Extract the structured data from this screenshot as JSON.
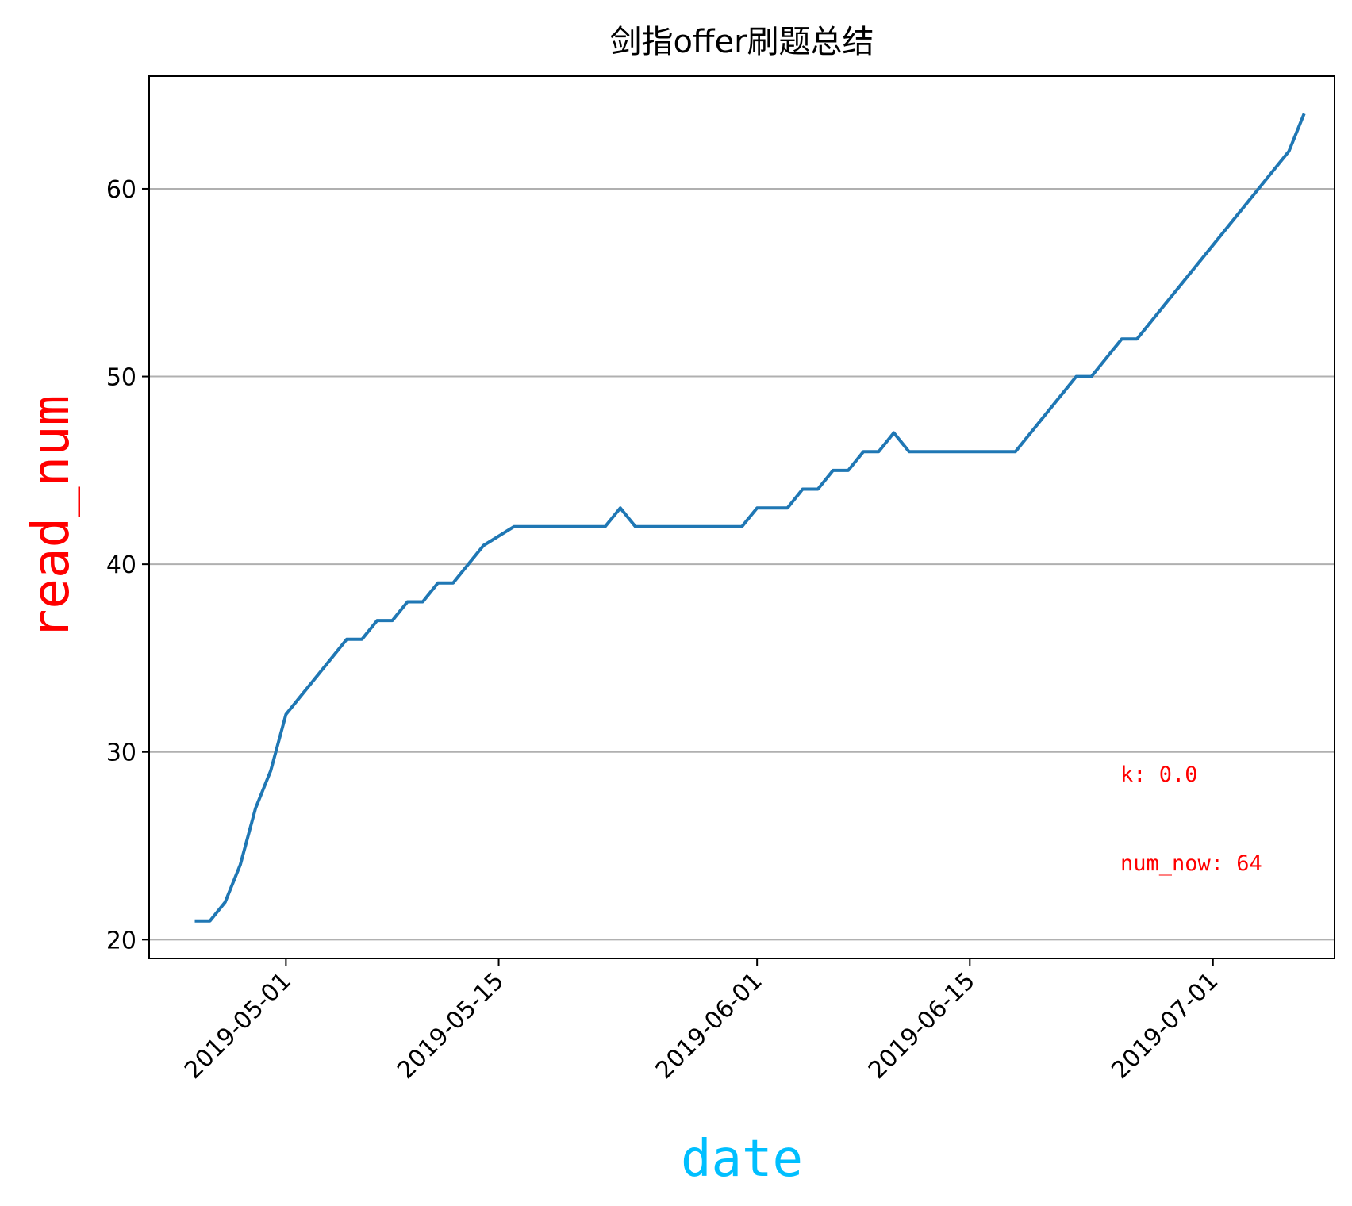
{
  "chart_data": {
    "type": "line",
    "title": "剑指offer刷题总结",
    "xlabel": "date",
    "ylabel": "read_num",
    "xlabel_color": "#00bfff",
    "ylabel_color": "#ff0000",
    "line_color": "#1f77b4",
    "grid": "y",
    "ylim": [
      19,
      66
    ],
    "xlim": [
      "2019-04-22",
      "2019-07-09"
    ],
    "yticks": [
      20,
      30,
      40,
      50,
      60
    ],
    "xticks": [
      "2019-05-01",
      "2019-05-15",
      "2019-06-01",
      "2019-06-15",
      "2019-07-01"
    ],
    "series": [
      {
        "x": [
          "2019-04-25",
          "2019-04-26",
          "2019-04-27",
          "2019-04-28",
          "2019-04-29",
          "2019-04-30",
          "2019-05-01",
          "2019-05-03",
          "2019-05-05",
          "2019-05-06",
          "2019-05-07",
          "2019-05-08",
          "2019-05-09",
          "2019-05-10",
          "2019-05-11",
          "2019-05-12",
          "2019-05-13",
          "2019-05-14",
          "2019-05-16",
          "2019-05-22",
          "2019-05-23",
          "2019-05-24",
          "2019-05-31",
          "2019-06-01",
          "2019-06-03",
          "2019-06-04",
          "2019-06-05",
          "2019-06-06",
          "2019-06-07",
          "2019-06-08",
          "2019-06-09",
          "2019-06-10",
          "2019-06-11",
          "2019-06-18",
          "2019-06-22",
          "2019-06-23",
          "2019-06-25",
          "2019-06-26",
          "2019-07-06",
          "2019-07-07"
        ],
        "y": [
          21,
          21,
          22,
          24,
          27,
          29,
          32,
          34,
          36,
          36,
          37,
          37,
          38,
          38,
          39,
          39,
          40,
          41,
          42,
          42,
          43,
          42,
          42,
          43,
          43,
          44,
          44,
          45,
          45,
          46,
          46,
          47,
          46,
          46,
          50,
          50,
          52,
          52,
          62,
          64
        ]
      }
    ]
  },
  "annotations": {
    "k_text": "k: 0.0",
    "num_now_text": "num_now: 64",
    "color": "#ff0000"
  }
}
